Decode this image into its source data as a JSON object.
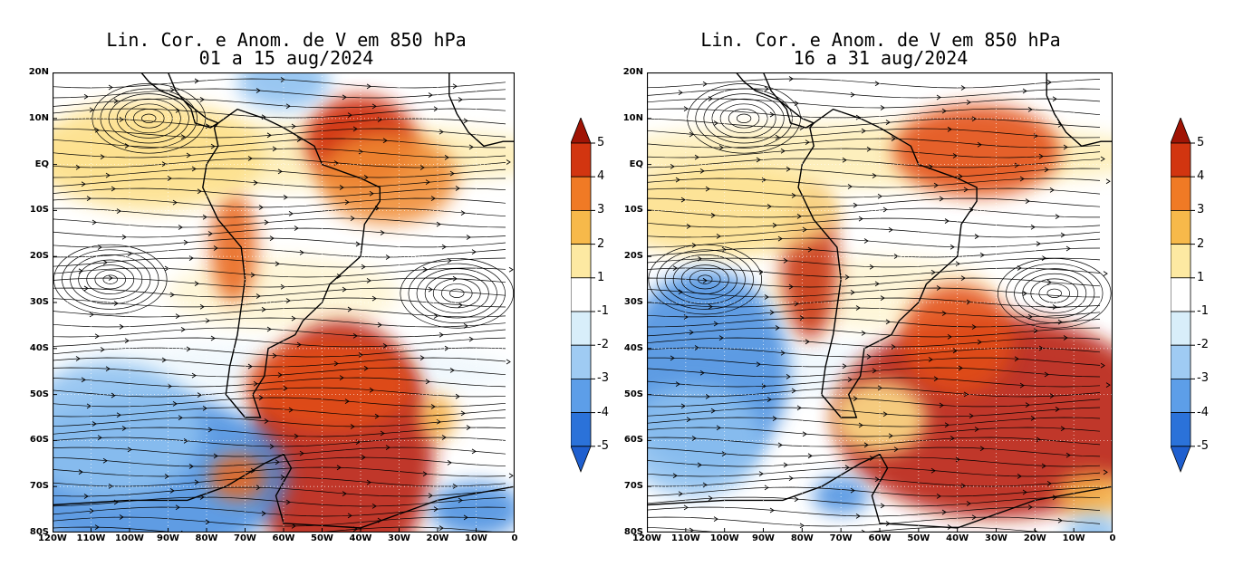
{
  "panels": [
    {
      "title_line1": "Lin. Cor. e Anom. de V em 850 hPa",
      "title_line2": "01 a 15 aug/2024",
      "blobs": [
        {
          "lon": -40,
          "lat": 5,
          "rx": 0.12,
          "ry": 0.1,
          "c": "#cc2200"
        },
        {
          "lon": -33,
          "lat": -3,
          "rx": 0.15,
          "ry": 0.1,
          "c": "#f08a30"
        },
        {
          "lon": -73,
          "lat": -18,
          "rx": 0.05,
          "ry": 0.12,
          "c": "#e8661c"
        },
        {
          "lon": -95,
          "lat": 2,
          "rx": 0.25,
          "ry": 0.12,
          "c": "#fde08a"
        },
        {
          "lon": -45,
          "lat": -62,
          "rx": 0.2,
          "ry": 0.28,
          "c": "#b81c08"
        },
        {
          "lon": -48,
          "lat": -48,
          "rx": 0.18,
          "ry": 0.1,
          "c": "#e24e15"
        },
        {
          "lon": -95,
          "lat": -68,
          "rx": 0.3,
          "ry": 0.18,
          "c": "#4a8fe0"
        },
        {
          "lon": -105,
          "lat": -58,
          "rx": 0.2,
          "ry": 0.15,
          "c": "#8cc0f0"
        },
        {
          "lon": -72,
          "lat": -68,
          "rx": 0.06,
          "ry": 0.05,
          "c": "#e8661c"
        },
        {
          "lon": -60,
          "lat": 18,
          "rx": 0.1,
          "ry": 0.06,
          "c": "#8cc0f0"
        },
        {
          "lon": -20,
          "lat": -55,
          "rx": 0.04,
          "ry": 0.05,
          "c": "#f5b24a"
        },
        {
          "lon": -10,
          "lat": -75,
          "rx": 0.1,
          "ry": 0.06,
          "c": "#4a8fe0"
        }
      ],
      "x_ticks": [
        "120W",
        "110W",
        "100W",
        "90W",
        "80W",
        "70W",
        "60W",
        "50W",
        "40W",
        "30W",
        "20W",
        "10W",
        "0"
      ],
      "y_ticks": [
        "20N",
        "10N",
        "EQ",
        "10S",
        "20S",
        "30S",
        "40S",
        "50S",
        "60S",
        "70S",
        "80S"
      ]
    },
    {
      "title_line1": "Lin. Cor. e Anom. de V em 850 hPa",
      "title_line2": "16 a 31 aug/2024",
      "blobs": [
        {
          "lon": -35,
          "lat": 3,
          "rx": 0.18,
          "ry": 0.1,
          "c": "#e24e15"
        },
        {
          "lon": -78,
          "lat": -22,
          "rx": 0.06,
          "ry": 0.16,
          "c": "#c83010"
        },
        {
          "lon": -100,
          "lat": -10,
          "rx": 0.25,
          "ry": 0.1,
          "c": "#fde08a"
        },
        {
          "lon": -105,
          "lat": -45,
          "rx": 0.18,
          "ry": 0.22,
          "c": "#4a8fe0"
        },
        {
          "lon": -108,
          "lat": -60,
          "rx": 0.15,
          "ry": 0.12,
          "c": "#8cc0f0"
        },
        {
          "lon": -30,
          "lat": -55,
          "rx": 0.35,
          "ry": 0.22,
          "c": "#b81c08"
        },
        {
          "lon": -40,
          "lat": -38,
          "rx": 0.12,
          "ry": 0.12,
          "c": "#e24e15"
        },
        {
          "lon": -70,
          "lat": -72,
          "rx": 0.06,
          "ry": 0.04,
          "c": "#4a8fe0"
        },
        {
          "lon": -5,
          "lat": -72,
          "rx": 0.08,
          "ry": 0.05,
          "c": "#f5b24a"
        },
        {
          "lon": -5,
          "lat": -80,
          "rx": 0.06,
          "ry": 0.04,
          "c": "#8cc0f0"
        },
        {
          "lon": -60,
          "lat": -55,
          "rx": 0.1,
          "ry": 0.08,
          "c": "#fde08a"
        }
      ],
      "x_ticks": [
        "120W",
        "110W",
        "100W",
        "90W",
        "80W",
        "70W",
        "60W",
        "50W",
        "40W",
        "30W",
        "20W",
        "10W",
        "0"
      ],
      "y_ticks": [
        "20N",
        "10N",
        "EQ",
        "10S",
        "20S",
        "30S",
        "40S",
        "50S",
        "60S",
        "70S",
        "80S"
      ]
    }
  ],
  "colorbar": {
    "labels": [
      "5",
      "4",
      "3",
      "2",
      "1",
      "-1",
      "-2",
      "-3",
      "-4",
      "-5"
    ],
    "colors": [
      "#a01405",
      "#d23510",
      "#f07a25",
      "#f7b94a",
      "#fde9a2",
      "#ffffff",
      "#d8eefa",
      "#9fcbf3",
      "#5d9ee8",
      "#2b72d9",
      "#1f5fcf"
    ]
  }
}
